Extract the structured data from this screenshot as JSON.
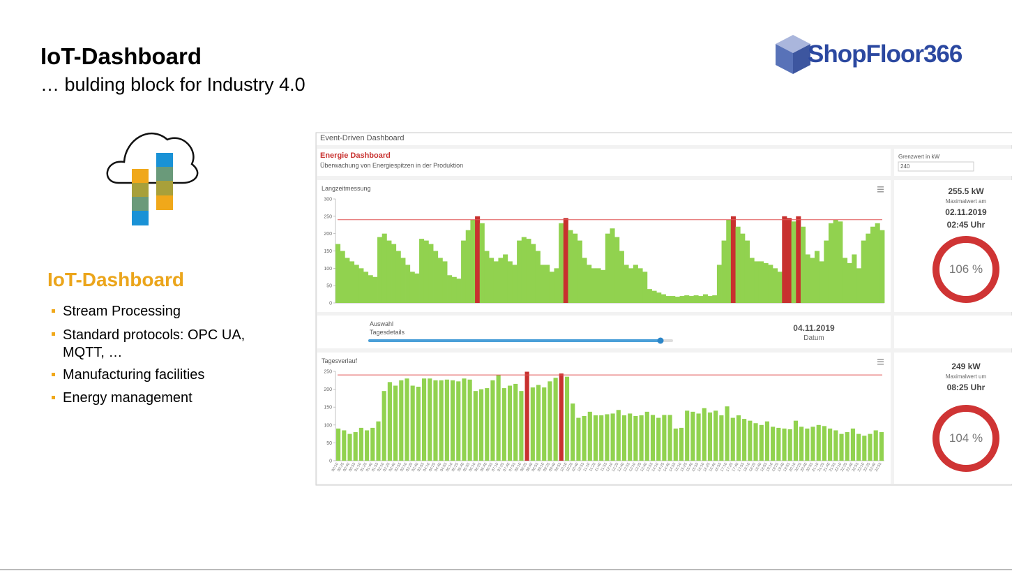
{
  "header": {
    "title": "IoT-Dashboard",
    "subtitle": "… bulding block for Industry 4.0",
    "logo": "ShopFloor366"
  },
  "sidebar": {
    "heading": "IoT-Dashboard",
    "bullets": [
      "Stream Processing",
      "Standard protocols: OPC UA, MQTT, …",
      "Manufacturing facilities",
      "Energy management"
    ]
  },
  "dashboard": {
    "window_title": "Event-Driven Dashboard",
    "title": "Energie Dashboard",
    "subtitle": "Überwachung von Energiespitzen in der Produktion",
    "limit_label": "Grenzwert in kW",
    "selection": {
      "label1": "Auswahl",
      "label2": "Tagesdetails",
      "date": "04.11.2019",
      "date_label": "Datum"
    },
    "long_stats": {
      "max": "255.5 kW",
      "caption": "Maximalwert am",
      "date": "02.11.2019",
      "time": "02:45 Uhr",
      "percent": "106 %"
    },
    "day_stats": {
      "max": "249 kW",
      "caption": "Maximalwert um",
      "time": "08:25 Uhr",
      "percent": "104 %"
    }
  },
  "chart_data": [
    {
      "type": "bar",
      "title": "Langzeitmessung",
      "limit": 240,
      "color": "#91d24f",
      "over_color": "#c8312f",
      "limit_color": "#e05555",
      "ylim": [
        0,
        300
      ],
      "yticks": [
        0,
        50,
        100,
        150,
        200,
        250,
        300
      ],
      "values": [
        170,
        150,
        130,
        120,
        110,
        100,
        90,
        80,
        75,
        190,
        200,
        180,
        170,
        150,
        130,
        110,
        90,
        85,
        185,
        180,
        170,
        150,
        130,
        120,
        80,
        75,
        70,
        180,
        210,
        240,
        250,
        230,
        150,
        130,
        120,
        130,
        140,
        120,
        110,
        180,
        190,
        185,
        170,
        150,
        110,
        110,
        90,
        100,
        230,
        245,
        210,
        200,
        180,
        130,
        110,
        100,
        100,
        95,
        200,
        215,
        190,
        150,
        110,
        100,
        110,
        100,
        90,
        40,
        35,
        30,
        25,
        20,
        20,
        18,
        20,
        22,
        20,
        22,
        20,
        25,
        20,
        22,
        110,
        180,
        240,
        250,
        220,
        200,
        180,
        130,
        120,
        120,
        115,
        110,
        100,
        90,
        250,
        245,
        235,
        250,
        220,
        140,
        130,
        150,
        120,
        180,
        230,
        240,
        235,
        130,
        115,
        140,
        100,
        180,
        200,
        220,
        230,
        210
      ]
    },
    {
      "type": "bar",
      "title": "Tagesverlauf",
      "limit": 240,
      "color": "#91d24f",
      "over_color": "#c8312f",
      "limit_color": "#e05555",
      "ylim": [
        0,
        250
      ],
      "yticks": [
        0,
        50,
        100,
        150,
        200,
        250
      ],
      "categories": [
        "00:10",
        "00:25",
        "00:40",
        "00:55",
        "01:10",
        "01:25",
        "01:40",
        "01:55",
        "02:10",
        "02:25",
        "02:40",
        "02:55",
        "03:10",
        "03:25",
        "03:40",
        "03:55",
        "04:10",
        "04:25",
        "04:40",
        "04:55",
        "05:10",
        "05:25",
        "05:40",
        "05:55",
        "06:10",
        "06:25",
        "06:40",
        "06:55",
        "07:10",
        "07:25",
        "07:40",
        "07:55",
        "08:10",
        "08:25",
        "08:40",
        "08:55",
        "09:10",
        "09:25",
        "09:40",
        "09:55",
        "10:10",
        "10:25",
        "10:40",
        "10:55",
        "11:10",
        "11:25",
        "11:40",
        "11:55",
        "12:10",
        "12:25",
        "12:40",
        "12:55",
        "13:10",
        "13:25",
        "13:40",
        "13:55",
        "14:10",
        "14:25",
        "14:40",
        "14:55",
        "15:10",
        "15:25",
        "15:40",
        "15:55",
        "16:10",
        "16:25",
        "16:40",
        "16:55",
        "17:10",
        "17:25",
        "17:40",
        "17:55",
        "18:10",
        "18:25",
        "18:40",
        "18:55",
        "19:10",
        "19:25",
        "19:40",
        "19:55",
        "20:10",
        "20:25",
        "20:40",
        "20:55",
        "21:10",
        "21:25",
        "21:40",
        "21:55",
        "22:10",
        "22:25",
        "22:40",
        "22:55",
        "23:10",
        "23:25",
        "23:40",
        "23:55"
      ],
      "values": [
        90,
        85,
        75,
        80,
        92,
        85,
        92,
        110,
        195,
        220,
        210,
        225,
        230,
        210,
        207,
        230,
        230,
        225,
        225,
        227,
        225,
        222,
        230,
        227,
        195,
        200,
        203,
        225,
        240,
        203,
        210,
        215,
        195,
        249,
        205,
        212,
        205,
        222,
        232,
        244,
        235,
        160,
        120,
        125,
        137,
        127,
        127,
        130,
        132,
        142,
        127,
        132,
        125,
        127,
        137,
        128,
        120,
        128,
        128,
        90,
        92,
        140,
        137,
        132,
        147,
        135,
        140,
        127,
        152,
        120,
        127,
        117,
        112,
        105,
        100,
        110,
        95,
        92,
        90,
        88,
        112,
        95,
        90,
        95,
        100,
        97,
        90,
        85,
        75,
        80,
        90,
        75,
        70,
        75,
        85,
        80
      ]
    }
  ]
}
